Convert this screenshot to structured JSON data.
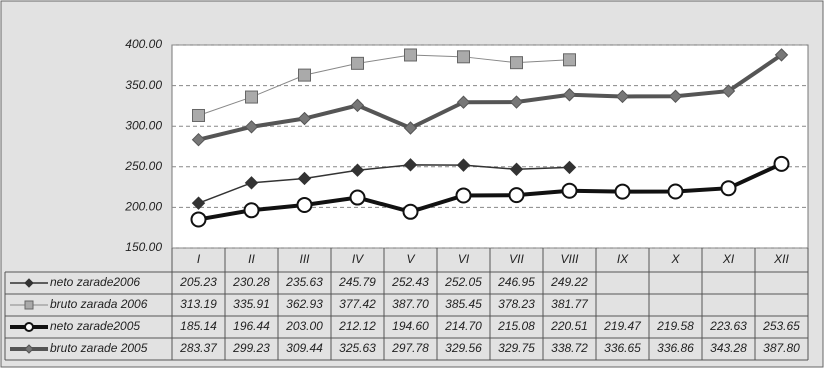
{
  "chart_data": {
    "type": "line",
    "categories": [
      "I",
      "II",
      "III",
      "IV",
      "V",
      "VI",
      "VII",
      "VIII",
      "IX",
      "X",
      "XI",
      "XII"
    ],
    "ylim": [
      150,
      400
    ],
    "yticks": [
      {
        "value": 150,
        "label": "150.00"
      },
      {
        "value": 200,
        "label": "200.00"
      },
      {
        "value": 250,
        "label": "250.00"
      },
      {
        "value": 300,
        "label": "300.00"
      },
      {
        "value": 350,
        "label": "350.00"
      },
      {
        "value": 400,
        "label": "400.00"
      }
    ],
    "grid": true,
    "series": [
      {
        "name": "neto zarade2006",
        "color": "#333333",
        "marker": "diamond",
        "values": [
          205.23,
          230.28,
          235.63,
          245.79,
          252.43,
          252.05,
          246.95,
          249.22,
          null,
          null,
          null,
          null
        ],
        "value_labels": [
          "205.23",
          "230.28",
          "235.63",
          "245.79",
          "252.43",
          "252.05",
          "246.95",
          "249.22",
          null,
          null,
          null,
          null
        ]
      },
      {
        "name": "bruto zarada 2006",
        "color": "#888888",
        "marker": "square",
        "values": [
          313.19,
          335.91,
          362.93,
          377.42,
          387.7,
          385.45,
          378.23,
          381.77,
          null,
          null,
          null,
          null
        ],
        "value_labels": [
          "313.19",
          "335.91",
          "362.93",
          "377.42",
          "387.70",
          "385.45",
          "378.23",
          "381.77",
          null,
          null,
          null,
          null
        ]
      },
      {
        "name": "neto zarade2005",
        "color": "#111111",
        "marker": "circle",
        "values": [
          185.14,
          196.44,
          203.0,
          212.12,
          194.6,
          214.7,
          215.08,
          220.51,
          219.47,
          219.58,
          223.63,
          253.65
        ],
        "value_labels": [
          "185.14",
          "196.44",
          "203.00",
          "212.12",
          "194.60",
          "214.70",
          "215.08",
          "220.51",
          "219.47",
          "219.58",
          "223.63",
          "253.65"
        ]
      },
      {
        "name": "bruto zarade 2005",
        "color": "#555555",
        "marker": "diamond",
        "values": [
          283.37,
          299.23,
          309.44,
          325.63,
          297.78,
          329.56,
          329.75,
          338.72,
          336.65,
          336.86,
          343.28,
          387.8
        ],
        "value_labels": [
          "283.37",
          "299.23",
          "309.44",
          "325.63",
          "297.78",
          "329.56",
          "329.75",
          "338.72",
          "336.65",
          "336.86",
          "343.28",
          "387.80"
        ]
      }
    ]
  }
}
